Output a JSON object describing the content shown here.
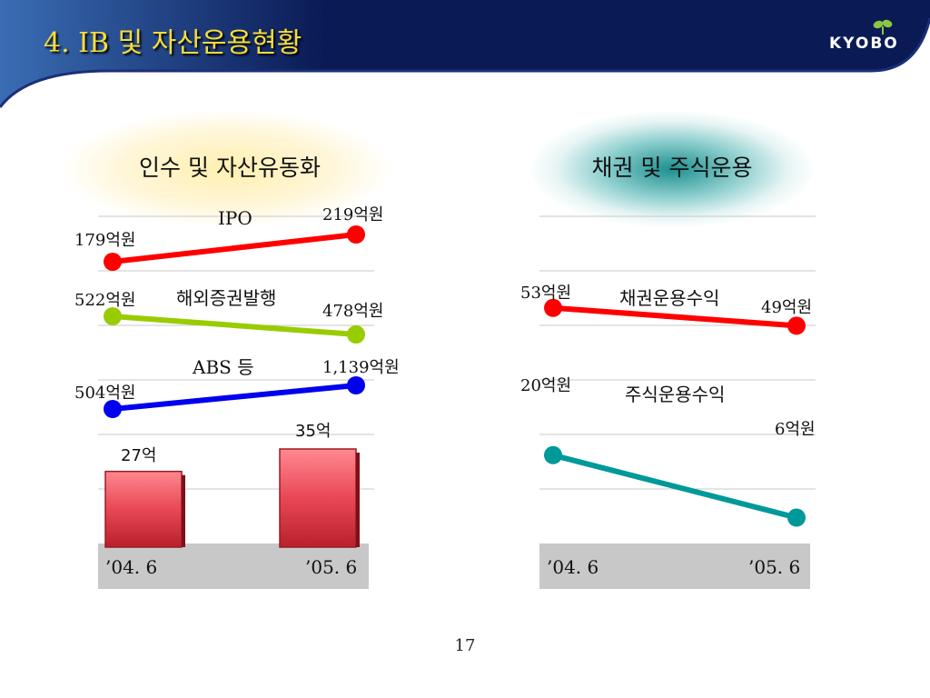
{
  "slide": {
    "title": "4. IB 및 자산운용현황",
    "logo_text": "KYOBO",
    "page_number": "17"
  },
  "colors": {
    "header_dark": "#0a1a55",
    "header_light": "#3a6db4",
    "title_text": "#f5dd3a",
    "ipo": "#ff0000",
    "overseas": "#99cc00",
    "abs": "#0000ee",
    "bond": "#ff0000",
    "stock": "#009999",
    "bar": "#e84855",
    "axis_band": "#c8c8c8"
  },
  "chart_data": [
    {
      "type": "line",
      "title": "인수 및 자산유동화",
      "categories": [
        "’04. 6",
        "’05. 6"
      ],
      "series": [
        {
          "name": "IPO",
          "values": [
            179,
            219
          ],
          "labels": [
            "179억원",
            "219억원"
          ],
          "color": "#ff0000"
        },
        {
          "name": "해외증권발행",
          "values": [
            522,
            478
          ],
          "labels": [
            "522억원",
            "478억원"
          ],
          "color": "#99cc00"
        },
        {
          "name": "ABS 등",
          "values": [
            504,
            1139
          ],
          "labels": [
            "504억원",
            "1,139억원"
          ],
          "color": "#0000ee"
        }
      ],
      "bars": {
        "values": [
          27,
          35
        ],
        "labels": [
          "27억",
          "35억"
        ],
        "color": "#e84855"
      },
      "grid": true,
      "legend": "inline"
    },
    {
      "type": "line",
      "title": "채권 및 주식운용",
      "categories": [
        "’04. 6",
        "’05. 6"
      ],
      "series": [
        {
          "name": "채권운용수익",
          "values": [
            53,
            49
          ],
          "labels": [
            "53억원",
            "49억원"
          ],
          "color": "#ff0000"
        },
        {
          "name": "주식운용수익",
          "values": [
            20,
            6
          ],
          "labels": [
            "20억원",
            "6억원"
          ],
          "color": "#009999"
        }
      ],
      "grid": true,
      "legend": "inline"
    }
  ]
}
